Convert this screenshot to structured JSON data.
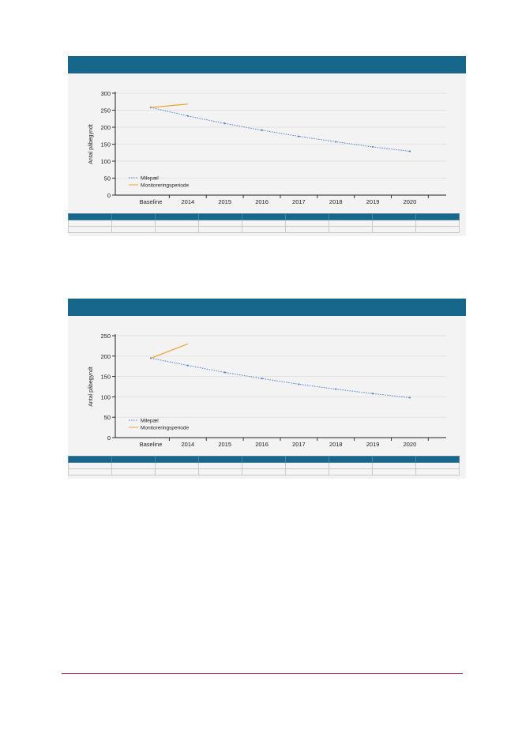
{
  "colors": {
    "header": "#17668c",
    "milepael": "#4a7fd8",
    "monitorering": "#f0a22a",
    "footer_line": "#c0305a"
  },
  "charts": [
    {
      "chart_data": {
        "type": "line",
        "ylabel": "Antal påbegyndt",
        "categories": [
          "Baseline",
          "2014",
          "2015",
          "2016",
          "2017",
          "2018",
          "2019",
          "2020"
        ],
        "ylim": [
          0,
          300
        ],
        "yticks": [
          0,
          50,
          100,
          150,
          200,
          250,
          300
        ],
        "grid": true,
        "legend": "bottom-left",
        "series": [
          {
            "name": "Milepæl",
            "style": "dotted",
            "color": "#4a7fd8",
            "values": [
              258,
              233,
              211,
              191,
              173,
              157,
              142,
              129
            ]
          },
          {
            "name": "Monitoreringsperiode",
            "style": "solid",
            "color": "#f0a22a",
            "values": [
              258,
              268,
              null,
              null,
              null,
              null,
              null,
              null
            ]
          }
        ]
      }
    },
    {
      "chart_data": {
        "type": "line",
        "ylabel": "Antal påbegyndt",
        "categories": [
          "Baseline",
          "2014",
          "2015",
          "2016",
          "2017",
          "2018",
          "2019",
          "2020"
        ],
        "ylim": [
          0,
          250
        ],
        "yticks": [
          0,
          50,
          100,
          150,
          200,
          250
        ],
        "grid": true,
        "legend": "bottom-left",
        "series": [
          {
            "name": "Milepæl",
            "style": "dotted",
            "color": "#4a7fd8",
            "values": [
              195,
              177,
              160,
              145,
              131,
              119,
              108,
              98
            ]
          },
          {
            "name": "Monitoreringsperiode",
            "style": "solid",
            "color": "#f0a22a",
            "values": [
              195,
              230,
              null,
              null,
              null,
              null,
              null,
              null
            ]
          }
        ]
      }
    }
  ]
}
